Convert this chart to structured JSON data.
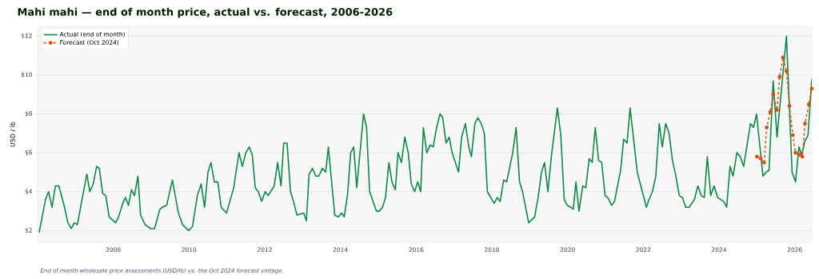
{
  "chart_data": {
    "type": "line",
    "title": "Mahi mahi — end of month price, actual vs. forecast, 2006-2026",
    "ylabel": "USD / lb",
    "annotations": [
      "End of month wholesale price assessments (USD/lb) vs. the Oct 2024 forecast vintage."
    ],
    "xlim": [
      2006.0,
      2026.45
    ],
    "xticks": [
      2008,
      2010,
      2012,
      2014,
      2016,
      2018,
      2020,
      2022,
      2024,
      2026
    ],
    "ylim": [
      1.4,
      12.5
    ],
    "yticks": [
      {
        "value": 2,
        "label": "$2"
      },
      {
        "value": 4,
        "label": "$4"
      },
      {
        "value": 6,
        "label": "$6"
      },
      {
        "value": 8,
        "label": "$8"
      },
      {
        "value": 10,
        "label": "$10"
      },
      {
        "value": 12,
        "label": "$12"
      }
    ],
    "grid": "y",
    "legend": "top left",
    "series": [
      {
        "name": "Actual (end of month)",
        "color": "#0b8a47",
        "line_style": "solid",
        "marker": "none",
        "x": [
          2006.04,
          2006.21,
          2006.29,
          2006.38,
          2006.47,
          2006.56,
          2006.7,
          2006.8,
          2006.89,
          2006.97,
          2007.05,
          2007.3,
          2007.38,
          2007.47,
          2007.56,
          2007.63,
          2007.72,
          2007.8,
          2007.89,
          2008.06,
          2008.14,
          2008.25,
          2008.32,
          2008.4,
          2008.48,
          2008.56,
          2008.65,
          2008.72,
          2008.84,
          2008.99,
          2009.09,
          2009.23,
          2009.3,
          2009.41,
          2009.56,
          2009.72,
          2009.83,
          2009.99,
          2010.09,
          2010.22,
          2010.32,
          2010.41,
          2010.5,
          2010.58,
          2010.67,
          2010.76,
          2010.85,
          2010.99,
          2011.18,
          2011.32,
          2011.41,
          2011.5,
          2011.59,
          2011.67,
          2011.75,
          2011.83,
          2011.92,
          2012.01,
          2012.09,
          2012.25,
          2012.34,
          2012.43,
          2012.5,
          2012.59,
          2012.68,
          2012.76,
          2012.85,
          2013.03,
          2013.1,
          2013.17,
          2013.26,
          2013.35,
          2013.43,
          2013.52,
          2013.61,
          2013.68,
          2013.85,
          2013.94,
          2014.03,
          2014.1,
          2014.19,
          2014.27,
          2014.35,
          2014.43,
          2014.61,
          2014.69,
          2014.77,
          2014.95,
          2015.03,
          2015.11,
          2015.19,
          2015.28,
          2015.36,
          2015.45,
          2015.52,
          2015.61,
          2015.7,
          2015.79,
          2015.87,
          2015.96,
          2016.04,
          2016.12,
          2016.19,
          2016.28,
          2016.37,
          2016.45,
          2016.54,
          2016.63,
          2016.7,
          2016.79,
          2016.87,
          2016.95,
          2017.12,
          2017.2,
          2017.3,
          2017.39,
          2017.46,
          2017.55,
          2017.63,
          2017.72,
          2017.8,
          2017.88,
          2018.06,
          2018.14,
          2018.22,
          2018.31,
          2018.39,
          2018.55,
          2018.64,
          2018.73,
          2018.81,
          2018.97,
          2019.13,
          2019.22,
          2019.31,
          2019.39,
          2019.48,
          2019.57,
          2019.73,
          2019.82,
          2019.91,
          2019.99,
          2020.08,
          2020.15,
          2020.22,
          2020.3,
          2020.4,
          2020.48,
          2020.57,
          2020.65,
          2020.73,
          2020.82,
          2020.9,
          2020.99,
          2021.06,
          2021.16,
          2021.24,
          2021.4,
          2021.48,
          2021.57,
          2021.65,
          2021.84,
          2022.08,
          2022.15,
          2022.24,
          2022.33,
          2022.42,
          2022.5,
          2022.59,
          2022.68,
          2022.77,
          2022.85,
          2022.95,
          2023.03,
          2023.12,
          2023.21,
          2023.35,
          2023.44,
          2023.53,
          2023.61,
          2023.69,
          2023.78,
          2023.87,
          2023.96,
          2024.12,
          2024.2,
          2024.29,
          2024.37,
          2024.47,
          2024.56,
          2024.65,
          2024.83,
          2024.91,
          2024.99,
          2025.16,
          2025.24,
          2025.32,
          2025.43,
          2025.53,
          2025.78,
          2025.93,
          2026.02,
          2026.11,
          2026.18,
          2026.27,
          2026.35,
          2026.45
        ],
        "values": [
          1.9,
          3.6,
          4.0,
          3.2,
          4.3,
          4.3,
          3.3,
          2.4,
          2.1,
          2.4,
          2.3,
          4.9,
          4.0,
          4.4,
          5.3,
          5.2,
          3.9,
          3.8,
          2.7,
          2.4,
          2.7,
          3.4,
          3.7,
          3.3,
          4.1,
          3.8,
          4.8,
          2.8,
          2.3,
          2.1,
          2.1,
          3.1,
          3.2,
          3.3,
          4.6,
          2.9,
          2.3,
          2.0,
          2.2,
          3.8,
          4.4,
          3.2,
          5.0,
          5.5,
          4.5,
          4.5,
          3.2,
          2.9,
          4.2,
          6.0,
          5.3,
          6.0,
          6.3,
          5.9,
          4.2,
          4.0,
          3.5,
          4.0,
          3.8,
          4.3,
          5.5,
          4.3,
          6.5,
          6.5,
          4.0,
          3.5,
          2.8,
          2.9,
          2.5,
          4.9,
          5.2,
          4.8,
          4.8,
          5.2,
          5.0,
          6.3,
          2.8,
          2.7,
          2.9,
          2.7,
          3.9,
          6.0,
          6.3,
          4.2,
          8.0,
          7.3,
          4.0,
          3.0,
          3.0,
          3.2,
          3.7,
          5.5,
          4.5,
          4.1,
          6.0,
          5.5,
          6.8,
          6.0,
          4.4,
          4.0,
          4.5,
          4.0,
          7.3,
          6.0,
          6.4,
          6.3,
          7.3,
          8.0,
          7.8,
          6.5,
          6.8,
          6.0,
          5.0,
          6.8,
          7.5,
          6.3,
          5.8,
          7.5,
          7.8,
          7.5,
          7.0,
          4.0,
          3.4,
          3.7,
          3.5,
          4.6,
          4.5,
          6.0,
          7.3,
          4.5,
          4.0,
          2.4,
          2.7,
          3.7,
          5.0,
          5.5,
          4.0,
          5.8,
          8.3,
          6.9,
          3.6,
          3.3,
          3.2,
          3.1,
          4.5,
          3.0,
          4.3,
          4.2,
          5.7,
          5.5,
          7.3,
          5.6,
          5.5,
          3.8,
          3.7,
          3.3,
          3.5,
          5.1,
          6.7,
          6.5,
          8.3,
          5.0,
          3.2,
          3.6,
          4.0,
          4.8,
          7.5,
          6.3,
          7.5,
          7.0,
          5.6,
          4.9,
          3.8,
          3.7,
          3.2,
          3.2,
          3.6,
          4.3,
          3.8,
          3.7,
          5.8,
          3.8,
          4.3,
          3.7,
          3.5,
          3.2,
          5.3,
          4.8,
          6.0,
          5.8,
          5.3,
          7.5,
          7.3,
          8.0,
          4.8,
          5.0,
          5.1,
          9.7,
          6.8,
          12.0,
          5.0,
          4.5,
          6.3,
          5.9,
          6.6,
          6.9,
          9.8
        ]
      },
      {
        "name": "Forecast (Oct 2024)",
        "color": "#d9500b",
        "line_style": "dashed",
        "marker": "circle",
        "x": [
          2025.0,
          2025.1,
          2025.19,
          2025.26,
          2025.35,
          2025.43,
          2025.53,
          2025.6,
          2025.69,
          2025.78,
          2025.86,
          2025.95,
          2026.02,
          2026.12,
          2026.2,
          2026.27,
          2026.37,
          2026.45
        ],
        "values": [
          5.8,
          5.7,
          5.5,
          7.3,
          8.1,
          9.0,
          8.2,
          9.9,
          10.9,
          10.2,
          8.4,
          6.9,
          6.0,
          5.9,
          5.8,
          7.5,
          8.5,
          9.3
        ]
      }
    ]
  }
}
